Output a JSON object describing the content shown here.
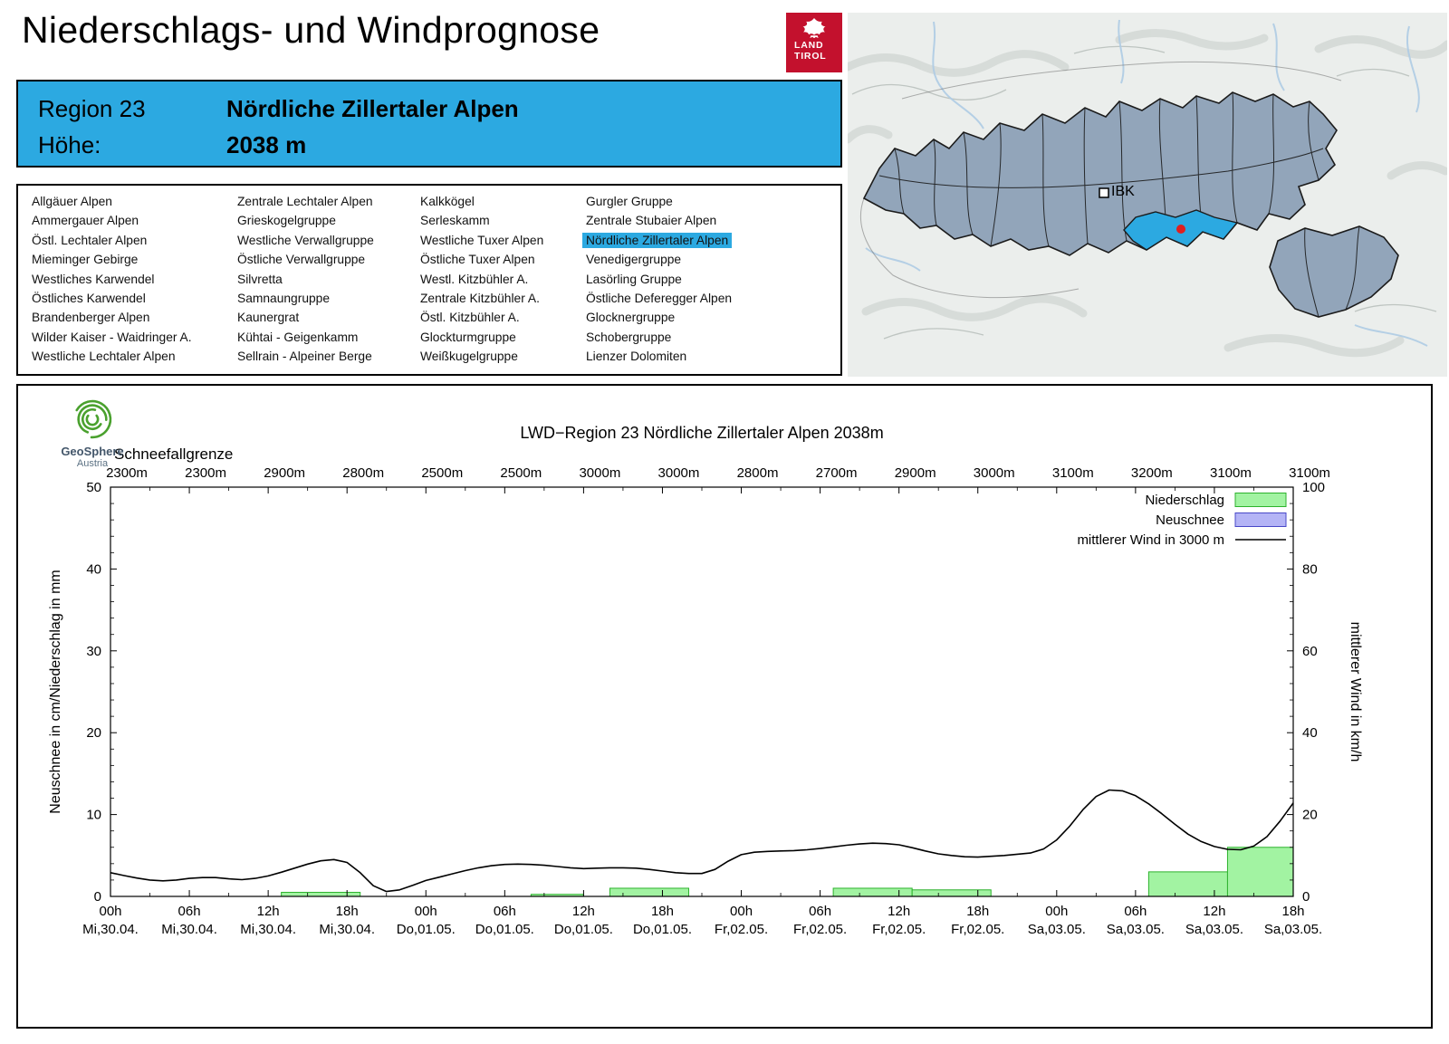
{
  "header": {
    "title": "Niederschlags- und Windprognose",
    "logo_line1": "LAND",
    "logo_line2": "TIROL"
  },
  "region_header": {
    "region_label": "Region 23",
    "region_name": "Nördliche Zillertaler Alpen",
    "height_label": "Höhe:",
    "height_value": "2038 m"
  },
  "region_list": {
    "selected": "Nördliche Zillertaler Alpen",
    "columns": [
      [
        "Allgäuer Alpen",
        "Ammergauer Alpen",
        "Östl. Lechtaler Alpen",
        "Mieminger Gebirge",
        "Westliches Karwendel",
        "Östliches Karwendel",
        "Brandenberger Alpen",
        "Wilder Kaiser - Waidringer A.",
        "Westliche Lechtaler Alpen"
      ],
      [
        "Zentrale Lechtaler Alpen",
        "Grieskogelgruppe",
        "Westliche Verwallgruppe",
        "Östliche Verwallgruppe",
        "Silvretta",
        "Samnaungruppe",
        "Kaunergrat",
        "Kühtai - Geigenkamm",
        "Sellrain - Alpeiner Berge"
      ],
      [
        "Kalkkögel",
        "Serleskamm",
        "Westliche Tuxer Alpen",
        "Östliche Tuxer Alpen",
        "Westl. Kitzbühler A.",
        "Zentrale Kitzbühler A.",
        "Östl. Kitzbühler A.",
        "Glockturmgruppe",
        "Weißkugelgruppe"
      ],
      [
        "Gurgler Gruppe",
        "Zentrale Stubaier Alpen",
        "Nördliche Zillertaler Alpen",
        "Venedigergruppe",
        "Lasörling Gruppe",
        "Östliche Deferegger Alpen",
        "Glocknergruppe",
        "Schobergruppe",
        "Lienzer Dolomiten"
      ]
    ]
  },
  "map": {
    "city_label": "IBK"
  },
  "geosphere": {
    "name": "GeoSphere",
    "country": "Austria"
  },
  "colors": {
    "accent_blue": "#2ca9e1",
    "logo_red": "#c3112d",
    "map_region_fill": "#92a5ba",
    "marker_red": "#e01f1f",
    "precip_fill": "#a2f3a2",
    "precip_stroke": "#2db22d",
    "snow_fill": "#b4b4f6",
    "snow_stroke": "#4848c8",
    "wind_line": "#000000"
  },
  "chart_data": {
    "type": "bar+line",
    "title": "LWD−Region 23 Nördliche Zillertaler Alpen 2038m",
    "snowline_label": "Schneefallgrenze",
    "ylabel_left": "Neuschnee in cm/Niederschlag in mm",
    "ylabel_right": "mittlerer Wind in km/h",
    "ylim_left": [
      0,
      50
    ],
    "ylim_right": [
      0,
      100
    ],
    "yticks_left": [
      0,
      10,
      20,
      30,
      40,
      50
    ],
    "yticks_right": [
      0,
      20,
      40,
      60,
      80,
      100
    ],
    "x_hours_max": 90,
    "x_ticks": [
      {
        "hour": 0,
        "time": "00h",
        "date": "Mi,30.04.",
        "snowline": "2300m"
      },
      {
        "hour": 6,
        "time": "06h",
        "date": "Mi,30.04.",
        "snowline": "2300m"
      },
      {
        "hour": 12,
        "time": "12h",
        "date": "Mi,30.04.",
        "snowline": "2900m"
      },
      {
        "hour": 18,
        "time": "18h",
        "date": "Mi,30.04.",
        "snowline": "2800m"
      },
      {
        "hour": 24,
        "time": "00h",
        "date": "Do,01.05.",
        "snowline": "2500m"
      },
      {
        "hour": 30,
        "time": "06h",
        "date": "Do,01.05.",
        "snowline": "2500m"
      },
      {
        "hour": 36,
        "time": "12h",
        "date": "Do,01.05.",
        "snowline": "3000m"
      },
      {
        "hour": 42,
        "time": "18h",
        "date": "Do,01.05.",
        "snowline": "3000m"
      },
      {
        "hour": 48,
        "time": "00h",
        "date": "Fr,02.05.",
        "snowline": "2800m"
      },
      {
        "hour": 54,
        "time": "06h",
        "date": "Fr,02.05.",
        "snowline": "2700m"
      },
      {
        "hour": 60,
        "time": "12h",
        "date": "Fr,02.05.",
        "snowline": "2900m"
      },
      {
        "hour": 66,
        "time": "18h",
        "date": "Fr,02.05.",
        "snowline": "3000m"
      },
      {
        "hour": 72,
        "time": "00h",
        "date": "Sa,03.05.",
        "snowline": "3100m"
      },
      {
        "hour": 78,
        "time": "06h",
        "date": "Sa,03.05.",
        "snowline": "3200m"
      },
      {
        "hour": 84,
        "time": "12h",
        "date": "Sa,03.05.",
        "snowline": "3100m"
      },
      {
        "hour": 90,
        "time": "18h",
        "date": "Sa,03.05.",
        "snowline": "3100m"
      }
    ],
    "legend": [
      {
        "label": "Niederschlag",
        "type": "bar",
        "fill": "#a2f3a2",
        "stroke": "#2db22d"
      },
      {
        "label": "Neuschnee",
        "type": "bar",
        "fill": "#b4b4f6",
        "stroke": "#4848c8"
      },
      {
        "label": "mittlerer Wind in 3000 m",
        "type": "line",
        "stroke": "#000000"
      }
    ],
    "precipitation_bars_mm": [
      {
        "from": 13,
        "to": 19,
        "value": 0.5
      },
      {
        "from": 32,
        "to": 36,
        "value": 0.25
      },
      {
        "from": 38,
        "to": 44,
        "value": 1.0
      },
      {
        "from": 55,
        "to": 61,
        "value": 1.0
      },
      {
        "from": 61,
        "to": 67,
        "value": 0.8
      },
      {
        "from": 79,
        "to": 85,
        "value": 3.0
      },
      {
        "from": 85,
        "to": 90,
        "value": 6.0
      }
    ],
    "neuschnee_bars_cm": [],
    "wind_kmh": [
      [
        0,
        5.8
      ],
      [
        1,
        5.1
      ],
      [
        2,
        4.5
      ],
      [
        3,
        4.0
      ],
      [
        4,
        3.8
      ],
      [
        5,
        4.0
      ],
      [
        6,
        4.4
      ],
      [
        7,
        4.6
      ],
      [
        8,
        4.6
      ],
      [
        9,
        4.3
      ],
      [
        10,
        4.1
      ],
      [
        11,
        4.4
      ],
      [
        12,
        5.0
      ],
      [
        13,
        5.9
      ],
      [
        14,
        6.9
      ],
      [
        15,
        7.9
      ],
      [
        16,
        8.7
      ],
      [
        17,
        9.0
      ],
      [
        18,
        8.3
      ],
      [
        19,
        5.8
      ],
      [
        20,
        2.6
      ],
      [
        21,
        1.2
      ],
      [
        22,
        1.6
      ],
      [
        23,
        2.7
      ],
      [
        24,
        3.9
      ],
      [
        25,
        4.7
      ],
      [
        26,
        5.5
      ],
      [
        27,
        6.3
      ],
      [
        28,
        7.0
      ],
      [
        29,
        7.5
      ],
      [
        30,
        7.8
      ],
      [
        31,
        7.9
      ],
      [
        32,
        7.8
      ],
      [
        33,
        7.6
      ],
      [
        34,
        7.3
      ],
      [
        35,
        7.0
      ],
      [
        36,
        6.8
      ],
      [
        37,
        6.9
      ],
      [
        38,
        7.0
      ],
      [
        39,
        7.0
      ],
      [
        40,
        6.9
      ],
      [
        41,
        6.6
      ],
      [
        42,
        6.2
      ],
      [
        43,
        5.8
      ],
      [
        44,
        5.6
      ],
      [
        45,
        5.6
      ],
      [
        46,
        6.6
      ],
      [
        47,
        8.6
      ],
      [
        48,
        10.2
      ],
      [
        49,
        10.8
      ],
      [
        50,
        11.0
      ],
      [
        51,
        11.1
      ],
      [
        52,
        11.2
      ],
      [
        53,
        11.4
      ],
      [
        54,
        11.7
      ],
      [
        55,
        12.1
      ],
      [
        56,
        12.5
      ],
      [
        57,
        12.8
      ],
      [
        58,
        13.0
      ],
      [
        59,
        12.9
      ],
      [
        60,
        12.6
      ],
      [
        61,
        11.9
      ],
      [
        62,
        11.1
      ],
      [
        63,
        10.4
      ],
      [
        64,
        10.0
      ],
      [
        65,
        9.7
      ],
      [
        66,
        9.6
      ],
      [
        67,
        9.8
      ],
      [
        68,
        10.0
      ],
      [
        69,
        10.3
      ],
      [
        70,
        10.6
      ],
      [
        71,
        11.6
      ],
      [
        72,
        13.8
      ],
      [
        73,
        17.2
      ],
      [
        74,
        21.2
      ],
      [
        75,
        24.4
      ],
      [
        76,
        26.0
      ],
      [
        77,
        25.8
      ],
      [
        78,
        24.6
      ],
      [
        79,
        22.6
      ],
      [
        80,
        20.2
      ],
      [
        81,
        17.6
      ],
      [
        82,
        15.2
      ],
      [
        83,
        13.4
      ],
      [
        84,
        12.2
      ],
      [
        85,
        11.5
      ],
      [
        86,
        11.4
      ],
      [
        87,
        12.3
      ],
      [
        88,
        14.6
      ],
      [
        89,
        18.4
      ],
      [
        90,
        22.8
      ]
    ]
  }
}
